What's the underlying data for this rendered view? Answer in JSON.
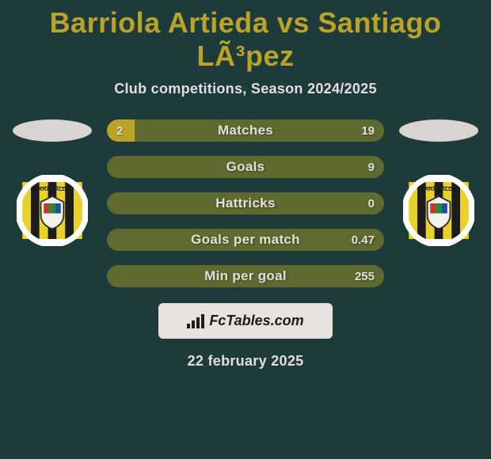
{
  "colors": {
    "background": "#1c3b3a",
    "accent": "#bba328",
    "bar_track": "#5f6a2f",
    "text_primary": "#e3dedc",
    "text_shadow": "#0b1a1a",
    "flag_ellipse": "#d9d4d2",
    "club_ring": "#ffffff",
    "club_inner": "#f3f1ee",
    "club_stripe_yellow": "#e8d22a",
    "club_stripe_black": "#1c1c1c",
    "shield_border": "#2b2b2b",
    "shield_red": "#c0392b",
    "shield_green": "#1f8b3b",
    "shield_blue": "#1e4f9a",
    "branding_bg": "#e6e2de",
    "branding_text": "#1d1d1d"
  },
  "title": {
    "player_a": "Barriola Artieda",
    "vs": "vs",
    "player_b": "Santiago LÃ³pez",
    "fontsize": 36,
    "color_key": "accent"
  },
  "subtitle": {
    "text": "Club competitions, Season 2024/2025",
    "fontsize": 18,
    "color_key": "text_primary"
  },
  "bars": {
    "track_height": 28,
    "track_color_key": "bar_track",
    "fill_color_key": "accent",
    "label_color_key": "text_primary",
    "value_color_key": "text_primary",
    "items": [
      {
        "label": "Matches",
        "left": "2",
        "right": "19",
        "left_fill_pct": 10
      },
      {
        "label": "Goals",
        "left": "",
        "right": "9",
        "left_fill_pct": 0
      },
      {
        "label": "Hattricks",
        "left": "",
        "right": "0",
        "left_fill_pct": 0
      },
      {
        "label": "Goals per match",
        "left": "",
        "right": "0.47",
        "left_fill_pct": 0
      },
      {
        "label": "Min per goal",
        "left": "",
        "right": "255",
        "left_fill_pct": 0
      }
    ]
  },
  "sides": {
    "left": {
      "flag_color_key": "flag_ellipse",
      "club_name": "Barakaldo"
    },
    "right": {
      "flag_color_key": "flag_ellipse",
      "club_name": "Barakaldo"
    }
  },
  "branding": {
    "text": "FcTables.com",
    "bg_key": "branding_bg",
    "text_color_key": "branding_text"
  },
  "date": {
    "text": "22 february 2025",
    "color_key": "text_primary"
  }
}
